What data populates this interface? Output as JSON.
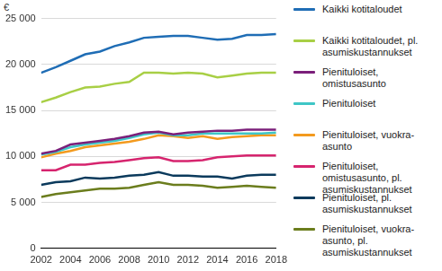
{
  "chart_data": {
    "type": "line",
    "ylabel": "€",
    "x": [
      2002,
      2003,
      2004,
      2005,
      2006,
      2007,
      2008,
      2009,
      2010,
      2011,
      2012,
      2013,
      2014,
      2015,
      2016,
      2017,
      2018
    ],
    "xlim": [
      2002,
      2018
    ],
    "xticks": [
      2002,
      2004,
      2006,
      2008,
      2010,
      2012,
      2014,
      2016,
      2018
    ],
    "ylim": [
      0,
      25000
    ],
    "yticks": [
      0,
      {
        "value": 5000,
        "label": "5 000"
      },
      {
        "value": 10000,
        "label": "10 000"
      },
      {
        "value": 15000,
        "label": "15 000"
      },
      {
        "value": 20000,
        "label": "20 000"
      },
      {
        "value": 25000,
        "label": "25 000"
      }
    ],
    "grid": true,
    "legend": "right",
    "series": [
      {
        "name": "Kaikki kotitaloudet",
        "color": "#1f6db5",
        "values": [
          19100,
          19700,
          20400,
          21100,
          21400,
          22000,
          22400,
          22900,
          23000,
          23100,
          23100,
          22900,
          22700,
          22800,
          23200,
          23200,
          23300
        ]
      },
      {
        "name": "Kaikki kotitaloudet, pl. asumiskustannukset",
        "color": "#a8cf45",
        "values": [
          15900,
          16400,
          17000,
          17500,
          17600,
          17900,
          18100,
          19100,
          19100,
          19000,
          19100,
          19000,
          18600,
          18800,
          19000,
          19100,
          19100
        ]
      },
      {
        "name": "Pienituloiset, omistusasunto",
        "color": "#7b1f7a",
        "values": [
          10300,
          10600,
          11300,
          11500,
          11700,
          11900,
          12200,
          12600,
          12700,
          12400,
          12600,
          12700,
          12800,
          12800,
          12900,
          12900,
          12900
        ]
      },
      {
        "name": "Pienituloiset",
        "color": "#3ec6c6",
        "values": [
          10200,
          10500,
          11000,
          11300,
          11500,
          11700,
          12000,
          12400,
          12600,
          12300,
          12300,
          12500,
          12500,
          12500,
          12500,
          12500,
          12600
        ]
      },
      {
        "name": "Pienituloiset, vuokra-asunto",
        "color": "#f39a1e",
        "values": [
          9900,
          10300,
          10600,
          11000,
          11200,
          11400,
          11600,
          11900,
          12300,
          12200,
          12000,
          12200,
          11900,
          12100,
          12200,
          12300,
          12300
        ]
      },
      {
        "name": "Pienituloiset, omistusasunto, pl. asumiskustannukset",
        "color": "#d6246e",
        "values": [
          8500,
          8500,
          9100,
          9100,
          9300,
          9400,
          9600,
          9800,
          9900,
          9500,
          9500,
          9600,
          9900,
          10000,
          10100,
          10100,
          10100
        ]
      },
      {
        "name": "Pienituloiset, pl. asumiskustannukset",
        "color": "#0b3a5c",
        "values": [
          6900,
          7200,
          7300,
          7700,
          7600,
          7700,
          7900,
          8000,
          8300,
          7900,
          7900,
          7800,
          7800,
          7600,
          7900,
          8000,
          8000
        ]
      },
      {
        "name": "Pienituloiset, vuokra-asunto, pl. asumiskustannukset",
        "color": "#6b7d1d",
        "values": [
          5600,
          5900,
          6100,
          6300,
          6500,
          6500,
          6600,
          6900,
          7200,
          6900,
          6900,
          6800,
          6600,
          6700,
          6800,
          6700,
          6600
        ]
      }
    ]
  }
}
